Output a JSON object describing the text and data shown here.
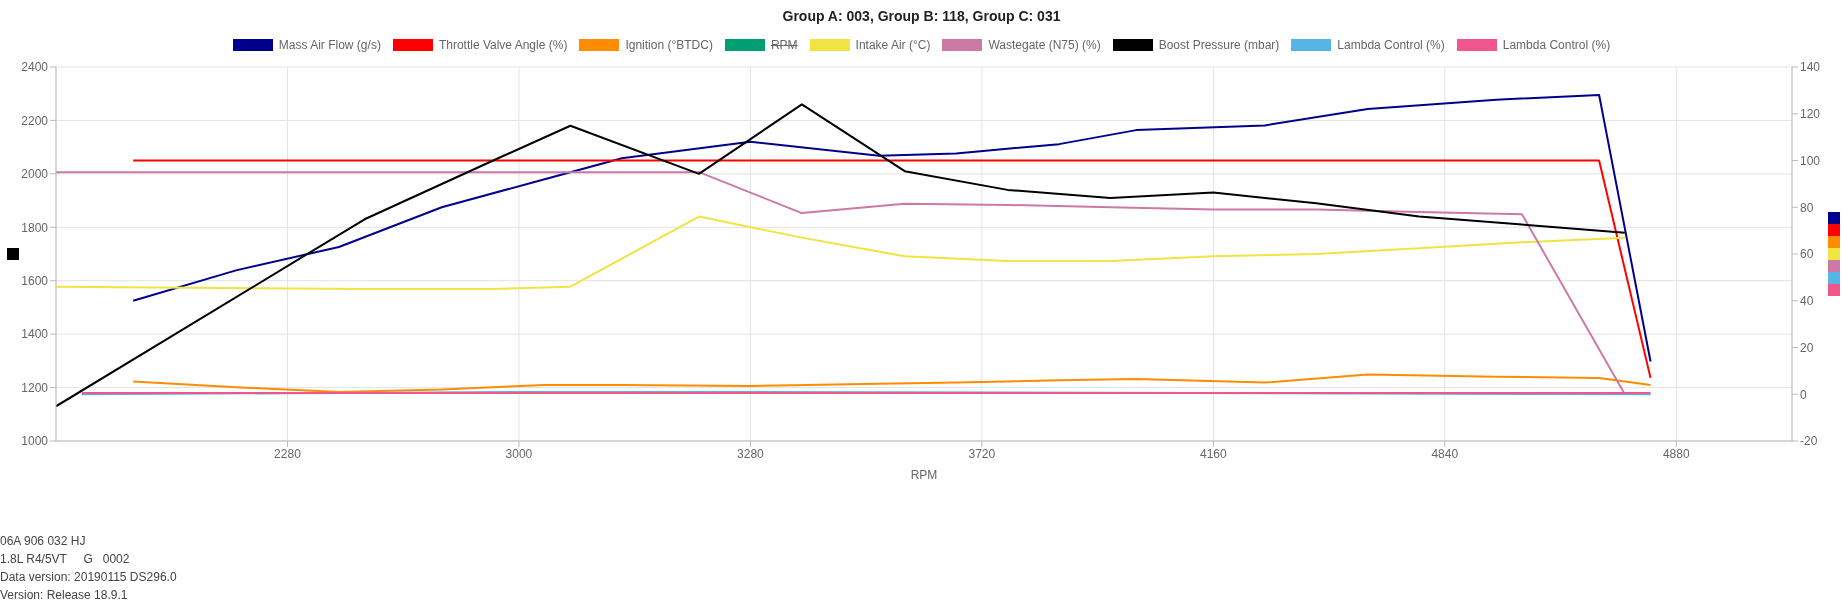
{
  "chart_data": {
    "type": "line",
    "title": "Group A: 003, Group B: 118, Group C: 031",
    "xlabel": "RPM",
    "categories": [
      null,
      null,
      null,
      null,
      null,
      null,
      null,
      null,
      null,
      "2280",
      null,
      null,
      null,
      null,
      null,
      null,
      null,
      null,
      "3000",
      null,
      null,
      null,
      null,
      null,
      null,
      null,
      null,
      "3280",
      null,
      null,
      null,
      null,
      null,
      null,
      null,
      null,
      "3720",
      null,
      null,
      null,
      null,
      null,
      null,
      null,
      null,
      "4160",
      null,
      null,
      null,
      null,
      null,
      null,
      null,
      null,
      "4840",
      null,
      null,
      null,
      null,
      null,
      null,
      null,
      null,
      "4880",
      null,
      null,
      null,
      null
    ],
    "ylim": [
      1000,
      2400
    ],
    "yticks": [
      1000,
      1200,
      1400,
      1600,
      1800,
      2000,
      2200,
      2400
    ],
    "y2lim": [
      -20,
      140
    ],
    "y2ticks": [
      -20,
      0,
      20,
      40,
      60,
      80,
      100,
      120,
      140
    ],
    "grid": true,
    "legend": "top",
    "line_style": "solid",
    "series": [
      {
        "name": "Mass Air Flow (g/s)",
        "color": "#00008b",
        "axis": "y2",
        "values": [
          null,
          null,
          null,
          40,
          null,
          null,
          null,
          53,
          null,
          null,
          null,
          63,
          null,
          null,
          null,
          80,
          null,
          null,
          null,
          92,
          null,
          null,
          101,
          null,
          null,
          null,
          null,
          108,
          null,
          null,
          null,
          null,
          102,
          null,
          null,
          103,
          null,
          null,
          null,
          107,
          null,
          null,
          113,
          null,
          null,
          null,
          null,
          115,
          null,
          null,
          null,
          122,
          null,
          null,
          null,
          null,
          126,
          null,
          null,
          null,
          128,
          null,
          14,
          null,
          null,
          null,
          null,
          null
        ]
      },
      {
        "name": "Throttle Valve Angle (%)",
        "color": "#ff0000",
        "axis": "y2",
        "values": [
          null,
          null,
          null,
          100,
          null,
          null,
          null,
          100,
          null,
          null,
          null,
          100,
          null,
          null,
          null,
          100,
          null,
          null,
          null,
          100,
          null,
          null,
          100,
          null,
          null,
          null,
          null,
          100,
          null,
          null,
          null,
          null,
          100,
          null,
          null,
          100,
          null,
          null,
          null,
          100,
          null,
          null,
          100,
          null,
          null,
          null,
          null,
          100,
          null,
          null,
          null,
          100,
          null,
          null,
          null,
          null,
          100,
          null,
          null,
          null,
          100,
          null,
          7,
          null,
          null,
          null,
          null,
          null
        ]
      },
      {
        "name": "Ignition (°BTDC)",
        "color": "#ff8c00",
        "axis": "y2",
        "values": [
          null,
          null,
          null,
          5.5,
          null,
          null,
          null,
          3,
          null,
          null,
          null,
          1,
          null,
          null,
          null,
          2,
          null,
          null,
          null,
          4,
          null,
          null,
          4,
          null,
          null,
          null,
          null,
          3.5,
          null,
          null,
          null,
          null,
          4.5,
          null,
          null,
          5,
          null,
          null,
          null,
          6,
          null,
          null,
          6.5,
          null,
          null,
          null,
          null,
          5,
          null,
          null,
          null,
          8.5,
          null,
          null,
          null,
          null,
          7.5,
          null,
          null,
          null,
          7,
          null,
          4,
          null,
          null,
          null,
          null,
          null
        ]
      },
      {
        "name": "RPM",
        "color": "#009e73",
        "axis": "y2",
        "values": [
          null,
          null,
          null,
          null,
          null,
          null,
          null,
          null,
          null,
          null,
          null,
          null,
          null,
          null,
          null,
          null,
          null,
          null,
          null,
          null,
          null,
          null,
          null,
          null,
          null,
          null,
          null,
          null,
          null,
          null,
          null,
          null,
          null,
          null,
          null,
          null,
          null,
          null,
          null,
          null,
          null,
          null,
          null,
          null,
          null,
          null,
          null,
          null,
          null,
          null,
          null,
          null,
          null,
          null,
          null,
          null,
          null,
          null,
          null,
          null,
          null,
          null,
          null,
          null,
          null,
          null,
          null,
          null
        ]
      },
      {
        "name": "Intake Air (°C)",
        "color": "#f0e442",
        "axis": "y2",
        "values": [
          46,
          null,
          null,
          null,
          null,
          null,
          null,
          null,
          null,
          null,
          null,
          null,
          45,
          null,
          null,
          null,
          null,
          45,
          null,
          null,
          46,
          null,
          null,
          null,
          null,
          76,
          null,
          null,
          null,
          67,
          null,
          null,
          null,
          59,
          null,
          null,
          null,
          57,
          null,
          null,
          null,
          57,
          null,
          null,
          null,
          59,
          null,
          null,
          null,
          60,
          null,
          null,
          null,
          62.5,
          null,
          null,
          null,
          65,
          null,
          null,
          null,
          67,
          null,
          null,
          null,
          null,
          null,
          null
        ]
      },
      {
        "name": "Wastegate (N75) (%)",
        "color": "#cc79a7",
        "axis": "y2",
        "values": [
          95,
          null,
          null,
          null,
          null,
          null,
          null,
          null,
          null,
          null,
          null,
          null,
          95,
          null,
          null,
          null,
          null,
          95,
          null,
          null,
          95,
          null,
          null,
          null,
          null,
          95,
          null,
          null,
          null,
          77.5,
          null,
          null,
          null,
          81.5,
          null,
          null,
          null,
          81,
          null,
          null,
          null,
          80,
          null,
          null,
          null,
          79,
          null,
          null,
          null,
          79,
          null,
          null,
          null,
          78,
          null,
          null,
          null,
          77,
          null,
          null,
          null,
          0,
          null,
          null,
          null,
          null,
          null,
          null
        ]
      },
      {
        "name": "Boost Pressure (mbar)",
        "color": "#000000",
        "values": [
          1130,
          null,
          null,
          null,
          null,
          null,
          null,
          null,
          null,
          null,
          null,
          null,
          1830,
          null,
          null,
          null,
          null,
          2050,
          null,
          null,
          2180,
          null,
          null,
          null,
          null,
          2000,
          null,
          null,
          null,
          2260,
          null,
          null,
          null,
          2010,
          null,
          null,
          null,
          1940,
          null,
          null,
          null,
          1910,
          null,
          null,
          null,
          1930,
          null,
          null,
          null,
          1890,
          null,
          null,
          null,
          1840,
          null,
          null,
          null,
          1810,
          null,
          null,
          null,
          1780,
          null,
          null,
          null,
          null,
          null,
          null
        ]
      },
      {
        "name": "Lambda Control (%)",
        "color": "#56b4e9",
        "axis": "y2",
        "values": [
          null,
          0,
          null,
          null,
          null,
          null,
          null,
          null,
          null,
          null,
          null,
          null,
          null,
          null,
          null,
          null,
          null,
          null,
          null,
          1,
          null,
          null,
          null,
          null,
          null,
          null,
          null,
          1,
          null,
          null,
          null,
          null,
          null,
          null,
          null,
          null,
          null,
          null,
          null,
          null,
          null,
          null,
          null,
          null,
          null,
          null,
          null,
          null,
          null,
          null,
          null,
          null,
          null,
          null,
          null,
          null,
          null,
          null,
          null,
          null,
          null,
          null,
          0,
          null,
          null,
          null,
          null,
          null
        ]
      },
      {
        "name": "Lambda Control (%)",
        "color": "#f0568c",
        "axis": "y2",
        "values": [
          null,
          0.5,
          null,
          null,
          null,
          null,
          null,
          null,
          null,
          null,
          null,
          null,
          null,
          null,
          null,
          null,
          null,
          null,
          null,
          null,
          null,
          null,
          null,
          null,
          null,
          null,
          null,
          null,
          null,
          null,
          null,
          null,
          null,
          null,
          null,
          null,
          null,
          null,
          null,
          null,
          null,
          null,
          null,
          null,
          null,
          null,
          null,
          null,
          null,
          null,
          null,
          null,
          null,
          null,
          null,
          null,
          null,
          null,
          null,
          null,
          null,
          null,
          0.5,
          null,
          null,
          null,
          null,
          null
        ]
      }
    ],
    "annotations": [
      "06A 906 032 HJ",
      "1.8L R4/5VT     G   0002",
      "Data version: 20190115 DS296.0",
      "Version: Release 18.9.1"
    ]
  }
}
